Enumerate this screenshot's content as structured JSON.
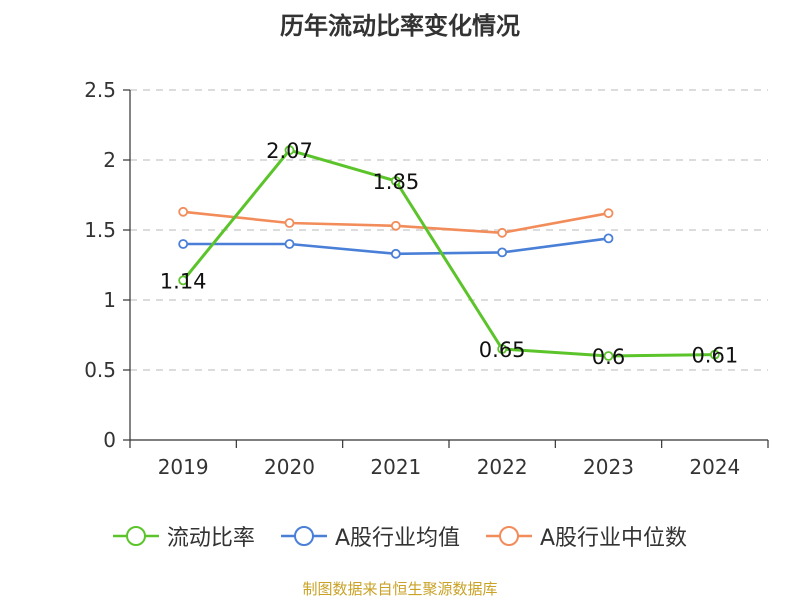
{
  "chart_data": {
    "type": "line",
    "title": "历年流动比率变化情况",
    "categories": [
      "2019",
      "2020",
      "2021",
      "2022",
      "2023",
      "2024"
    ],
    "ylim": [
      0,
      2.5
    ],
    "yticks": [
      "0",
      "0.5",
      "1",
      "1.5",
      "2",
      "2.5"
    ],
    "grid": true,
    "legend_position": "bottom",
    "series": [
      {
        "name": "流动比率",
        "color": "#5cc42b",
        "values": [
          1.14,
          2.07,
          1.85,
          0.65,
          0.6,
          0.61
        ],
        "labels": [
          "1.14",
          "2.07",
          "1.85",
          "0.65",
          "0.6",
          "0.61"
        ]
      },
      {
        "name": "A股行业均值",
        "color": "#4a7fd8",
        "values": [
          1.4,
          1.4,
          1.33,
          1.34,
          1.44,
          null
        ]
      },
      {
        "name": "A股行业中位数",
        "color": "#f28c5a",
        "values": [
          1.63,
          1.55,
          1.53,
          1.48,
          1.62,
          null
        ]
      }
    ]
  },
  "footer": "制图数据来自恒生聚源数据库"
}
